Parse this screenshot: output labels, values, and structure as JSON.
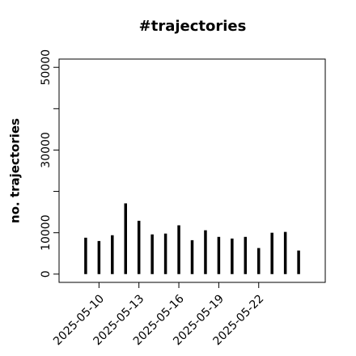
{
  "chart_data": {
    "type": "bar",
    "title": "#trajectories",
    "y_label": "no. trajectories",
    "x": [
      "2025-05-09",
      "2025-05-10",
      "2025-05-11",
      "2025-05-12",
      "2025-05-13",
      "2025-05-14",
      "2025-05-15",
      "2025-05-16",
      "2025-05-17",
      "2025-05-18",
      "2025-05-19",
      "2025-05-20",
      "2025-05-21",
      "2025-05-22",
      "2025-05-23",
      "2025-05-24",
      "2025-05-25"
    ],
    "values": [
      8800,
      8000,
      9400,
      17100,
      12900,
      9600,
      9800,
      11800,
      8200,
      10600,
      9000,
      8600,
      9000,
      6300,
      10000,
      10200,
      5700
    ],
    "color": "#000000",
    "xlim": [
      "2025-05-07",
      "2025-05-27"
    ],
    "xticks": [
      "2025-05-10",
      "2025-05-13",
      "2025-05-16",
      "2025-05-19",
      "2025-05-22"
    ],
    "ylim": [
      -2000,
      52000
    ],
    "yticks": [
      0,
      10000,
      30000,
      50000
    ],
    "yticks_unlabeled": [
      20000,
      40000
    ]
  }
}
